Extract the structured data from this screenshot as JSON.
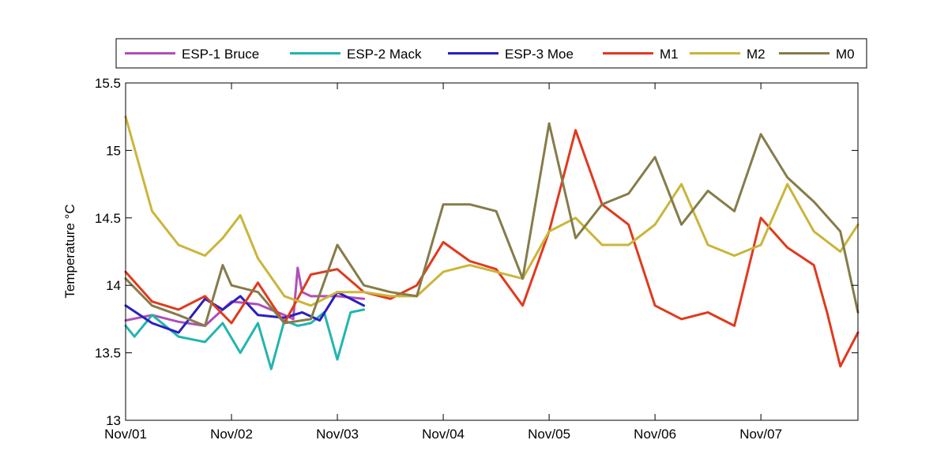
{
  "chart_data": {
    "type": "line",
    "title": "",
    "xlabel": "",
    "ylabel": "Temperature °C",
    "xlim": [
      "2000-11-01T00:00",
      "2000-11-07T22:00"
    ],
    "ylim": [
      13,
      15.5
    ],
    "yticks": [
      13,
      13.5,
      14,
      14.5,
      15,
      15.5
    ],
    "ytick_labels": [
      "13",
      "13.5",
      "14",
      "14.5",
      "15",
      "15.5"
    ],
    "xticks": [
      "Nov/01",
      "Nov/02",
      "Nov/03",
      "Nov/04",
      "Nov/05",
      "Nov/06",
      "Nov/07"
    ],
    "grid": false,
    "legend_position": "top",
    "series": [
      {
        "name": "ESP-1 Bruce",
        "color": "#b04fb8",
        "x": [
          "2000-11-01T00:00",
          "2000-11-01T06:00",
          "2000-11-01T12:00",
          "2000-11-01T18:00",
          "2000-11-02T00:00",
          "2000-11-02T06:00",
          "2000-11-02T12:00",
          "2000-11-02T14:00",
          "2000-11-02T15:00",
          "2000-11-02T16:00",
          "2000-11-02T18:00",
          "2000-11-03T00:00",
          "2000-11-03T06:00"
        ],
        "y": [
          13.74,
          13.78,
          13.73,
          13.7,
          13.88,
          13.86,
          13.78,
          13.75,
          14.13,
          13.95,
          13.92,
          13.92,
          13.9
        ]
      },
      {
        "name": "ESP-2 Mack",
        "color": "#22b5b0",
        "x": [
          "2000-11-01T00:00",
          "2000-11-01T02:00",
          "2000-11-01T06:00",
          "2000-11-01T12:00",
          "2000-11-01T18:00",
          "2000-11-01T22:00",
          "2000-11-02T02:00",
          "2000-11-02T06:00",
          "2000-11-02T09:00",
          "2000-11-02T12:00",
          "2000-11-02T15:00",
          "2000-11-02T18:00",
          "2000-11-02T21:00",
          "2000-11-03T00:00",
          "2000-11-03T03:00",
          "2000-11-03T06:00"
        ],
        "y": [
          13.7,
          13.62,
          13.78,
          13.62,
          13.58,
          13.72,
          13.5,
          13.72,
          13.38,
          13.74,
          13.7,
          13.72,
          13.8,
          13.45,
          13.8,
          13.82
        ]
      },
      {
        "name": "ESP-3 Moe",
        "color": "#2a1fbf",
        "x": [
          "2000-11-01T00:00",
          "2000-11-01T06:00",
          "2000-11-01T12:00",
          "2000-11-01T18:00",
          "2000-11-01T22:00",
          "2000-11-02T02:00",
          "2000-11-02T06:00",
          "2000-11-02T12:00",
          "2000-11-02T16:00",
          "2000-11-02T20:00",
          "2000-11-03T00:00",
          "2000-11-03T06:00"
        ],
        "y": [
          13.85,
          13.72,
          13.65,
          13.9,
          13.82,
          13.92,
          13.78,
          13.76,
          13.8,
          13.74,
          13.95,
          13.85
        ]
      },
      {
        "name": "M1",
        "color": "#e03a1e",
        "x": [
          "2000-11-01T00:00",
          "2000-11-01T06:00",
          "2000-11-01T12:00",
          "2000-11-01T18:00",
          "2000-11-02T00:00",
          "2000-11-02T06:00",
          "2000-11-02T12:00",
          "2000-11-02T18:00",
          "2000-11-03T00:00",
          "2000-11-03T06:00",
          "2000-11-03T12:00",
          "2000-11-03T18:00",
          "2000-11-04T00:00",
          "2000-11-04T06:00",
          "2000-11-04T12:00",
          "2000-11-04T18:00",
          "2000-11-05T00:00",
          "2000-11-05T06:00",
          "2000-11-05T12:00",
          "2000-11-05T18:00",
          "2000-11-06T00:00",
          "2000-11-06T06:00",
          "2000-11-06T12:00",
          "2000-11-06T18:00",
          "2000-11-07T00:00",
          "2000-11-07T06:00",
          "2000-11-07T12:00",
          "2000-11-07T15:00",
          "2000-11-07T18:00",
          "2000-11-07T22:00"
        ],
        "y": [
          14.1,
          13.88,
          13.82,
          13.92,
          13.72,
          14.02,
          13.72,
          14.08,
          14.12,
          13.95,
          13.9,
          14.0,
          14.32,
          14.18,
          14.12,
          13.85,
          14.4,
          15.15,
          14.6,
          14.45,
          13.85,
          13.75,
          13.8,
          13.7,
          14.5,
          14.28,
          14.15,
          13.8,
          13.4,
          13.65
        ]
      },
      {
        "name": "M2",
        "color": "#cbb53a",
        "x": [
          "2000-11-01T00:00",
          "2000-11-01T06:00",
          "2000-11-01T12:00",
          "2000-11-01T18:00",
          "2000-11-01T22:00",
          "2000-11-02T02:00",
          "2000-11-02T06:00",
          "2000-11-02T12:00",
          "2000-11-02T18:00",
          "2000-11-03T00:00",
          "2000-11-03T06:00",
          "2000-11-03T12:00",
          "2000-11-03T18:00",
          "2000-11-04T00:00",
          "2000-11-04T06:00",
          "2000-11-04T12:00",
          "2000-11-04T18:00",
          "2000-11-05T00:00",
          "2000-11-05T06:00",
          "2000-11-05T12:00",
          "2000-11-05T18:00",
          "2000-11-06T00:00",
          "2000-11-06T06:00",
          "2000-11-06T12:00",
          "2000-11-06T18:00",
          "2000-11-07T00:00",
          "2000-11-07T06:00",
          "2000-11-07T12:00",
          "2000-11-07T18:00",
          "2000-11-07T22:00"
        ],
        "y": [
          15.25,
          14.55,
          14.3,
          14.22,
          14.35,
          14.52,
          14.2,
          13.92,
          13.85,
          13.95,
          13.95,
          13.92,
          13.92,
          14.1,
          14.15,
          14.1,
          14.05,
          14.4,
          14.5,
          14.3,
          14.3,
          14.45,
          14.75,
          14.3,
          14.22,
          14.3,
          14.75,
          14.4,
          14.25,
          14.45
        ]
      },
      {
        "name": "M0",
        "color": "#857c4a",
        "x": [
          "2000-11-01T00:00",
          "2000-11-01T06:00",
          "2000-11-01T12:00",
          "2000-11-01T18:00",
          "2000-11-01T22:00",
          "2000-11-02T00:00",
          "2000-11-02T06:00",
          "2000-11-02T12:00",
          "2000-11-02T18:00",
          "2000-11-03T00:00",
          "2000-11-03T06:00",
          "2000-11-03T12:00",
          "2000-11-03T18:00",
          "2000-11-04T00:00",
          "2000-11-04T06:00",
          "2000-11-04T12:00",
          "2000-11-04T18:00",
          "2000-11-05T00:00",
          "2000-11-05T06:00",
          "2000-11-05T12:00",
          "2000-11-05T18:00",
          "2000-11-06T00:00",
          "2000-11-06T06:00",
          "2000-11-06T12:00",
          "2000-11-06T18:00",
          "2000-11-07T00:00",
          "2000-11-07T06:00",
          "2000-11-07T12:00",
          "2000-11-07T18:00",
          "2000-11-07T22:00"
        ],
        "y": [
          14.05,
          13.85,
          13.78,
          13.7,
          14.15,
          14.0,
          13.95,
          13.72,
          13.75,
          14.3,
          14.0,
          13.95,
          13.92,
          14.6,
          14.6,
          14.55,
          14.05,
          15.2,
          14.35,
          14.6,
          14.68,
          14.95,
          14.45,
          14.7,
          14.55,
          15.12,
          14.8,
          14.62,
          14.4,
          13.8
        ]
      }
    ]
  }
}
